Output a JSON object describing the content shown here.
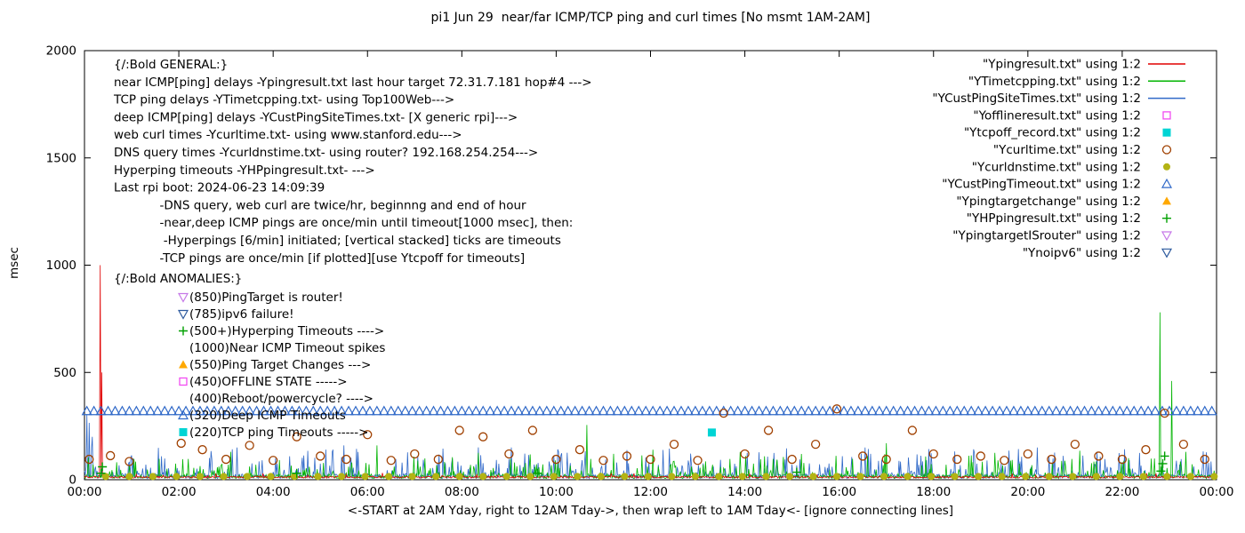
{
  "title": "pi1 Jun 29  near/far ICMP/TCP ping and curl times [No msmt 1AM-2AM]",
  "ylabel": "msec",
  "xlabel": "<-START at 2AM Yday, right to 12AM Tday->, then wrap left to 1AM Tday<- [ignore connecting lines]",
  "colors": {
    "red": "#e00000",
    "green": "#00b400",
    "blue": "#3069c8",
    "magenta": "#f24df2",
    "cyan": "#00d4d4",
    "brown": "#a04000",
    "olive": "#b3b314",
    "orange": "#ffa800",
    "dkgreen": "#00a000",
    "violet": "#c678e8",
    "navy": "#2d5a9e",
    "axis": "#000000"
  },
  "general_lines": [
    "{/:Bold GENERAL:}",
    "near ICMP[ping] delays -Ypingresult.txt last hour target 72.31.7.181 hop#4 --->",
    "TCP ping delays -YTimetcpping.txt- using Top100Web--->",
    "deep ICMP[ping] delays -YCustPingSiteTimes.txt- [X generic rpi]--->",
    "web curl times -Ycurltime.txt- using www.stanford.edu--->",
    "DNS query times -Ycurldnstime.txt- using router? 192.168.254.254--->",
    "Hyperping timeouts -YHPpingresult.txt- --->",
    "Last rpi boot: 2024-06-23 14:09:39",
    "            -DNS query, web curl are twice/hr, beginnng and end of hour",
    "            -near,deep ICMP pings are once/min until timeout[1000 msec], then:",
    "             -Hyperpings [6/min] initiated; [vertical stacked] ticks are timeouts",
    "            -TCP pings are once/min [if plotted][use Ytcpoff for timeouts]"
  ],
  "anomalies": {
    "header": "{/:Bold ANOMALIES:}",
    "items": [
      {
        "marker": "triangle-down-open",
        "color": "violet",
        "text": "(850)PingTarget is router!"
      },
      {
        "marker": "triangle-down-open",
        "color": "navy",
        "text": "(785)ipv6 failure!"
      },
      {
        "marker": "plus",
        "color": "dkgreen",
        "text": "(500+)Hyperping Timeouts ---->"
      },
      {
        "marker": null,
        "color": null,
        "text": "(1000)Near ICMP Timeout spikes"
      },
      {
        "marker": "triangle-up-filled",
        "color": "orange",
        "text": "(550)Ping Target Changes --->"
      },
      {
        "marker": "square-open",
        "color": "magenta",
        "text": "(450)OFFLINE STATE ----->"
      },
      {
        "marker": null,
        "color": null,
        "text": "(400)Reboot/powercycle? ---->"
      },
      {
        "marker": "triangle-up-open",
        "color": "blue",
        "text": "(320)Deep ICMP Timeouts"
      },
      {
        "marker": "square-filled",
        "color": "cyan",
        "text": "(220)TCP ping Timeouts ----->"
      }
    ]
  },
  "legend": [
    {
      "label": "\"Ypingresult.txt\" using 1:2",
      "sample": "line",
      "color": "red"
    },
    {
      "label": "\"YTimetcpping.txt\" using 1:2",
      "sample": "line",
      "color": "green"
    },
    {
      "label": "\"YCustPingSiteTimes.txt\" using 1:2",
      "sample": "line",
      "color": "blue"
    },
    {
      "label": "\"Yofflineresult.txt\" using 1:2",
      "sample": "square-open",
      "color": "magenta"
    },
    {
      "label": "\"Ytcpoff_record.txt\" using 1:2",
      "sample": "square-filled",
      "color": "cyan"
    },
    {
      "label": "\"Ycurltime.txt\" using 1:2",
      "sample": "circle-open",
      "color": "brown"
    },
    {
      "label": "\"Ycurldnstime.txt\" using 1:2",
      "sample": "circle-filled",
      "color": "olive"
    },
    {
      "label": "\"YCustPingTimeout.txt\" using 1:2",
      "sample": "triangle-up-open",
      "color": "blue"
    },
    {
      "label": "\"Ypingtargetchange\" using 1:2",
      "sample": "triangle-up-filled",
      "color": "orange"
    },
    {
      "label": "\"YHPpingresult.txt\" using 1:2",
      "sample": "plus",
      "color": "dkgreen"
    },
    {
      "label": "\"YpingtargetISrouter\" using 1:2",
      "sample": "triangle-down-open",
      "color": "violet"
    },
    {
      "label": "\"Ynoipv6\" using 1:2",
      "sample": "triangle-down-open",
      "color": "navy"
    }
  ],
  "chart_data": {
    "type": "line",
    "title": "pi1 Jun 29  near/far ICMP/TCP ping and curl times [No msmt 1AM-2AM]",
    "xlabel": "<-START at 2AM Yday, right to 12AM Tday->, then wrap left to 1AM Tday<- [ignore connecting lines]",
    "ylabel": "msec",
    "grid": false,
    "legend_position": "top-right-inside",
    "x_axis": {
      "range_hours": [
        0,
        24
      ],
      "tick_hours": [
        0,
        2,
        4,
        6,
        8,
        10,
        12,
        14,
        16,
        18,
        20,
        22,
        24
      ],
      "tick_labels": [
        "00:00",
        "02:00",
        "04:00",
        "06:00",
        "08:00",
        "10:00",
        "12:00",
        "14:00",
        "16:00",
        "18:00",
        "20:00",
        "22:00",
        "00:00"
      ]
    },
    "y_axis": {
      "range": [
        0,
        2000
      ],
      "ticks": [
        0,
        500,
        1000,
        1500,
        2000
      ],
      "tick_labels": [
        "0",
        "500",
        "1000",
        "1500",
        "2000"
      ]
    },
    "noise_seed": 20240629,
    "series": [
      {
        "id": "ycustpingsitetimes",
        "name": "deep ICMP ping delays (YCustPingSiteTimes.txt)",
        "plot": "line",
        "color": "blue",
        "baseline_msec": 6,
        "jitter": 20,
        "spike_prob": 0.35,
        "spike_max": 130,
        "noise_pow": 2.5,
        "spikes": [
          [
            0.05,
            305
          ],
          [
            0.1,
            265
          ],
          [
            0.16,
            200
          ],
          [
            5.5,
            160
          ],
          [
            9.05,
            150
          ],
          [
            12.4,
            145
          ],
          [
            16.55,
            150
          ],
          [
            20.2,
            150
          ]
        ]
      },
      {
        "id": "ytimetcpping",
        "name": "TCP ping delays (YTimetcpping.txt)",
        "plot": "line",
        "color": "green",
        "baseline_msec": 6,
        "jitter": 16,
        "spike_prob": 0.3,
        "spike_max": 100,
        "noise_pow": 2.8,
        "spikes": [
          [
            3.1,
            130
          ],
          [
            6.2,
            160
          ],
          [
            8.35,
            125
          ],
          [
            10.65,
            255
          ],
          [
            12.05,
            140
          ],
          [
            13.9,
            130
          ],
          [
            15.2,
            120
          ],
          [
            17.0,
            170
          ],
          [
            19.3,
            125
          ],
          [
            21.1,
            135
          ],
          [
            22.8,
            780
          ],
          [
            23.05,
            460
          ],
          [
            23.35,
            130
          ]
        ]
      },
      {
        "id": "ypingresult",
        "name": "near ICMP ping delays (Ypingresult.txt)",
        "plot": "line",
        "color": "red",
        "baseline_msec": 8,
        "jitter": 8,
        "spike_prob": 0.05,
        "spike_max": 18,
        "noise_pow": 2,
        "spikes": [
          [
            0.33,
            1000
          ],
          [
            0.37,
            500
          ]
        ]
      },
      {
        "id": "ycustpingtimeout",
        "name": "deep ICMP timeouts (YCustPingTimeout.txt)",
        "plot": "marker-row",
        "marker": "triangle-up-open",
        "color": "blue",
        "y_msec": 320,
        "x_start": 0.05,
        "x_end": 23.95,
        "x_step": 0.15
      },
      {
        "id": "ycurldnstime",
        "name": "DNS query times (Ycurldnstime.txt)",
        "plot": "marker-row",
        "marker": "circle-filled",
        "color": "olive",
        "y_msec": 15,
        "x_start": 0.45,
        "x_end": 23.95,
        "x_step": 0.5
      },
      {
        "id": "ycurltime",
        "name": "web curl times (Ycurltime.txt)",
        "plot": "scatter",
        "marker": "circle-open",
        "color": "brown",
        "points": [
          [
            0.1,
            95
          ],
          [
            0.55,
            112
          ],
          [
            0.95,
            85
          ],
          [
            2.05,
            170
          ],
          [
            2.5,
            140
          ],
          [
            3.0,
            95
          ],
          [
            3.5,
            160
          ],
          [
            4.0,
            90
          ],
          [
            4.5,
            200
          ],
          [
            5.0,
            110
          ],
          [
            5.55,
            95
          ],
          [
            6.0,
            210
          ],
          [
            6.5,
            90
          ],
          [
            7.0,
            120
          ],
          [
            7.5,
            95
          ],
          [
            7.95,
            230
          ],
          [
            8.45,
            200
          ],
          [
            9.0,
            120
          ],
          [
            9.5,
            230
          ],
          [
            10.0,
            95
          ],
          [
            10.5,
            140
          ],
          [
            11.0,
            90
          ],
          [
            11.5,
            110
          ],
          [
            12.0,
            95
          ],
          [
            12.5,
            165
          ],
          [
            13.0,
            90
          ],
          [
            13.55,
            310
          ],
          [
            14.0,
            120
          ],
          [
            14.5,
            230
          ],
          [
            15.0,
            95
          ],
          [
            15.5,
            165
          ],
          [
            15.95,
            330
          ],
          [
            16.5,
            110
          ],
          [
            17.0,
            95
          ],
          [
            17.55,
            230
          ],
          [
            18.0,
            120
          ],
          [
            18.5,
            95
          ],
          [
            19.0,
            110
          ],
          [
            19.5,
            90
          ],
          [
            20.0,
            120
          ],
          [
            20.5,
            95
          ],
          [
            21.0,
            165
          ],
          [
            21.5,
            110
          ],
          [
            22.0,
            95
          ],
          [
            22.5,
            140
          ],
          [
            22.9,
            310
          ],
          [
            23.3,
            165
          ],
          [
            23.75,
            95
          ]
        ]
      },
      {
        "id": "ytcpoff_record",
        "name": "TCP ping timeouts (Ytcpoff_record.txt)",
        "plot": "scatter",
        "marker": "square-filled",
        "color": "cyan",
        "points": [
          [
            13.3,
            220
          ]
        ]
      },
      {
        "id": "yhppingresult",
        "name": "Hyperping timeouts (YHPpingresult.txt)",
        "plot": "scatter",
        "marker": "plus",
        "color": "dkgreen",
        "points": [
          [
            0.35,
            30
          ],
          [
            0.38,
            60
          ],
          [
            4.5,
            30
          ],
          [
            9.6,
            30
          ],
          [
            15.1,
            35
          ],
          [
            22.82,
            40
          ],
          [
            22.86,
            75
          ],
          [
            22.9,
            110
          ]
        ]
      }
    ]
  }
}
